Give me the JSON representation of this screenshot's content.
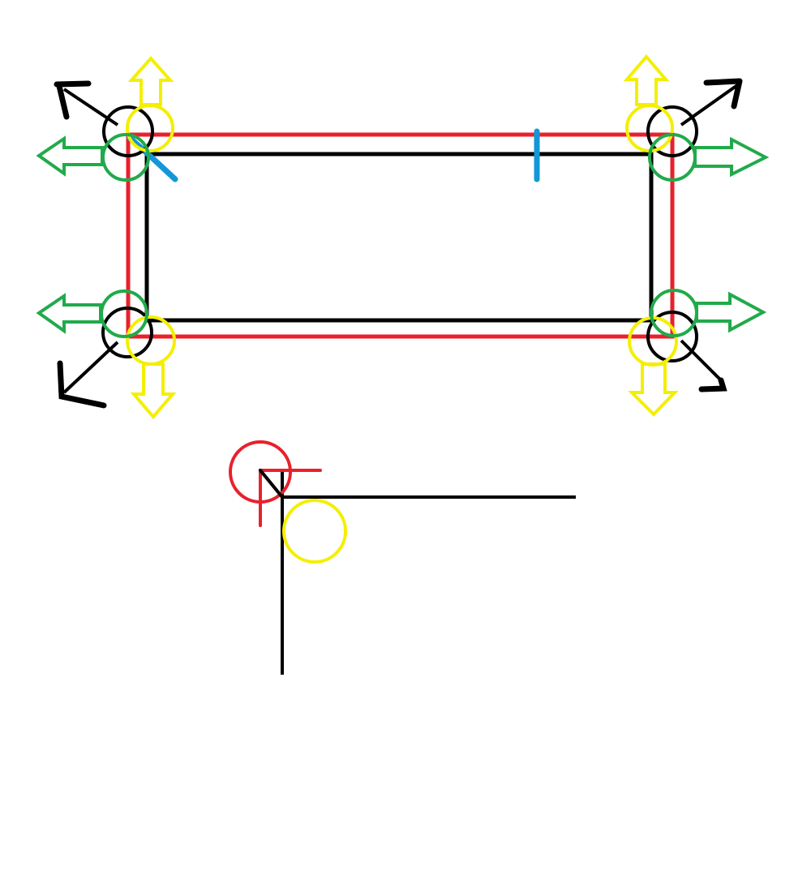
{
  "diagram": {
    "description_visible_text": "",
    "colors": {
      "black": "#000000",
      "red": "#e8212b",
      "yellow": "#f4ef00",
      "green": "#21aa4b",
      "blue": "#1397d8",
      "white": "#ffffff"
    },
    "handles": {
      "top_left": "corner-handle-top-left",
      "top_right": "corner-handle-top-right",
      "bottom_left": "corner-handle-bottom-left",
      "bottom_right": "corner-handle-bottom-right"
    },
    "arrow_types": [
      "diagonal-arrow",
      "vertical-arrow",
      "horizontal-arrow"
    ],
    "detail_view": "corner-detail"
  }
}
